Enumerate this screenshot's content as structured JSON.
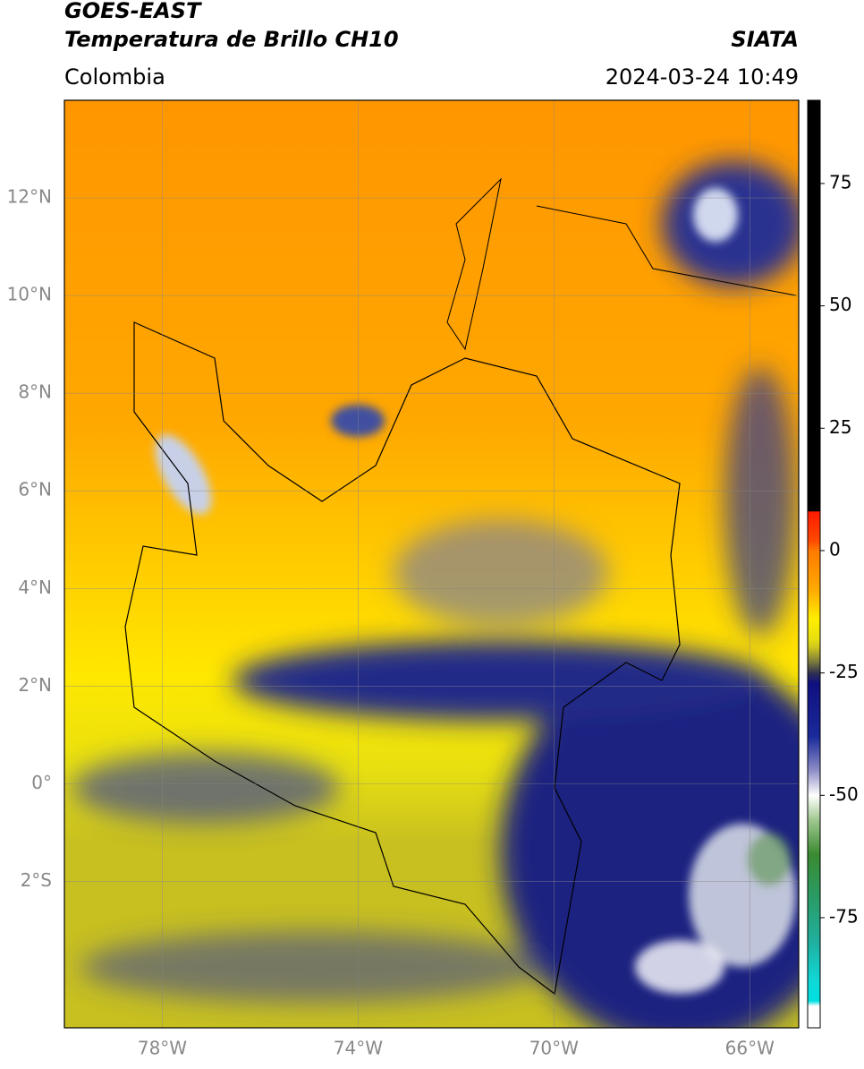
{
  "header": {
    "line1": "GOES-EAST",
    "line2": "Temperatura de Brillo CH10",
    "source": "SIATA",
    "region": "Colombia",
    "datetime": "2024-03-24 10:49"
  },
  "map": {
    "lonlim": [
      -80,
      -65
    ],
    "latlim": [
      -5,
      14
    ],
    "lonticks": [
      {
        "value": -78,
        "label": "78°W"
      },
      {
        "value": -74,
        "label": "74°W"
      },
      {
        "value": -70,
        "label": "70°W"
      },
      {
        "value": -66,
        "label": "66°W"
      }
    ],
    "latticks": [
      {
        "value": 12,
        "label": "12°N"
      },
      {
        "value": 10,
        "label": "10°N"
      },
      {
        "value": 8,
        "label": "8°N"
      },
      {
        "value": 6,
        "label": "6°N"
      },
      {
        "value": 4,
        "label": "4°N"
      },
      {
        "value": 2,
        "label": "2°N"
      },
      {
        "value": 0,
        "label": "0°"
      },
      {
        "value": -2,
        "label": "2°S"
      }
    ],
    "grid": true
  },
  "colorbar": {
    "lim": [
      -97.5,
      92
    ],
    "ticks": [
      75,
      50,
      25,
      0,
      -25,
      -50,
      -75
    ],
    "stops": [
      {
        "value": 92,
        "color": "#000000"
      },
      {
        "value": 8,
        "color": "#000000"
      },
      {
        "value": 8,
        "color": "#ff1a00"
      },
      {
        "value": 2,
        "color": "#ff4a00"
      },
      {
        "value": 0,
        "color": "#ff7a00"
      },
      {
        "value": -8,
        "color": "#ffaa00"
      },
      {
        "value": -14,
        "color": "#ffee00"
      },
      {
        "value": -18,
        "color": "#e8e010"
      },
      {
        "value": -20,
        "color": "#c8c020"
      },
      {
        "value": -23,
        "color": "#707040"
      },
      {
        "value": -25,
        "color": "#303050"
      },
      {
        "value": -27,
        "color": "#101080"
      },
      {
        "value": -38,
        "color": "#1a2a9a"
      },
      {
        "value": -45,
        "color": "#9090c8"
      },
      {
        "value": -50,
        "color": "#ffffff"
      },
      {
        "value": -55,
        "color": "#a0c890"
      },
      {
        "value": -62,
        "color": "#3a8a30"
      },
      {
        "value": -70,
        "color": "#2a9a60"
      },
      {
        "value": -80,
        "color": "#20b0a0"
      },
      {
        "value": -88,
        "color": "#10d8d8"
      },
      {
        "value": -92,
        "color": "#00e0e0"
      },
      {
        "value": -93,
        "color": "#ffffff"
      },
      {
        "value": -97.5,
        "color": "#ffffff"
      }
    ]
  }
}
